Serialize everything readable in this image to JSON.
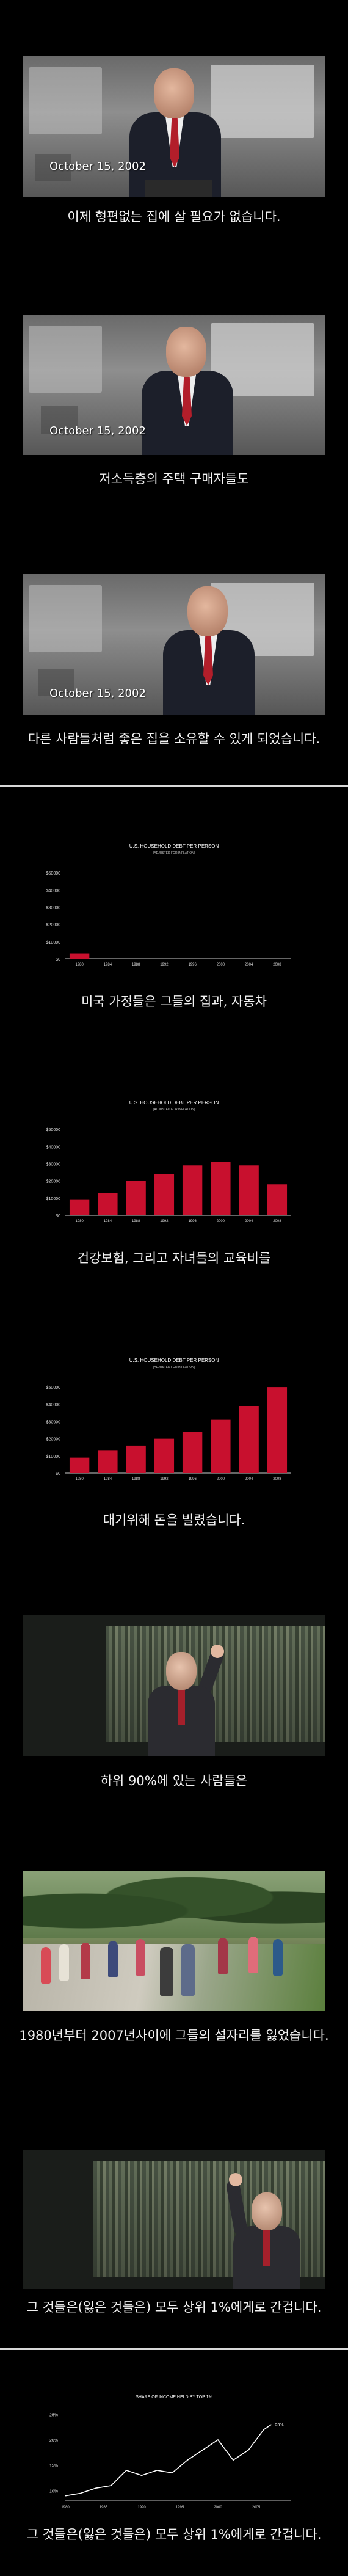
{
  "panels": [
    {
      "id": "p1",
      "caption": "이제 형편없는 집에 살 필요가 없습니다.",
      "date": "October 15, 2002"
    },
    {
      "id": "p2",
      "caption": "저소득층의 주택 구매자들도",
      "date": "October 15, 2002"
    },
    {
      "id": "p3",
      "caption": "다른 사람들처럼 좋은 집을 소유할 수 있게 되었습니다.",
      "date": "October 15, 2002"
    },
    {
      "id": "p4",
      "caption": "미국 가정들은 그들의 집과, 자동차"
    },
    {
      "id": "p5",
      "caption": "건강보험, 그리고 자녀들의 교육비를"
    },
    {
      "id": "p6",
      "caption": "대기위해 돈을 빌렸습니다."
    },
    {
      "id": "p7",
      "caption": "하위 90%에 있는 사람들은"
    },
    {
      "id": "p8",
      "caption": "1980년부터 2007년사이에 그들의 설자리를 잃었습니다."
    },
    {
      "id": "p9",
      "caption": "그 것들은(잃은 것들은) 모두 상위 1%에게로 간겁니다."
    },
    {
      "id": "p10",
      "caption": "그 것들은(잃은 것들은) 모두 상위 1%에게로 간겁니다."
    }
  ],
  "chart_data": [
    {
      "type": "bar",
      "title": "U.S. HOUSEHOLD DEBT PER PERSON",
      "subtitle": "(ADJUSTED FOR INFLATION)",
      "categories": [
        "1980",
        "1984",
        "1988",
        "1992",
        "1996",
        "2000",
        "2004",
        "2008"
      ],
      "values": [
        3000,
        0,
        0,
        0,
        0,
        0,
        0,
        0
      ],
      "yticks": [
        "$50000",
        "$40000",
        "$30000",
        "$20000",
        "$10000",
        "$0"
      ],
      "ylim": [
        0,
        55000
      ],
      "color": "#c8102e"
    },
    {
      "type": "bar",
      "title": "U.S. HOUSEHOLD DEBT PER PERSON",
      "subtitle": "(ADJUSTED FOR INFLATION)",
      "categories": [
        "1980",
        "1984",
        "1988",
        "1992",
        "1996",
        "2000",
        "2004",
        "2008"
      ],
      "values": [
        9000,
        13000,
        20000,
        24000,
        29000,
        31000,
        29000,
        18000
      ],
      "yticks": [
        "$50000",
        "$40000",
        "$30000",
        "$20000",
        "$10000",
        "$0"
      ],
      "ylim": [
        0,
        55000
      ],
      "color": "#c8102e"
    },
    {
      "type": "bar",
      "title": "U.S. HOUSEHOLD DEBT PER PERSON",
      "subtitle": "(ADJUSTED FOR INFLATION)",
      "categories": [
        "1980",
        "1984",
        "1988",
        "1992",
        "1996",
        "2000",
        "2004",
        "2008"
      ],
      "values": [
        9000,
        13000,
        16000,
        20000,
        24000,
        31000,
        39000,
        50000
      ],
      "yticks": [
        "$50000",
        "$40000",
        "$30000",
        "$20000",
        "$10000",
        "$0"
      ],
      "ylim": [
        0,
        55000
      ],
      "color": "#c8102e"
    },
    {
      "type": "line",
      "title": "SHARE OF INCOME HELD BY TOP 1%",
      "x": [
        1980,
        1982,
        1984,
        1986,
        1988,
        1990,
        1992,
        1994,
        1996,
        1998,
        2000,
        2002,
        2004,
        2006,
        2007
      ],
      "y": [
        9,
        9.5,
        10.5,
        11,
        14,
        13,
        14,
        13.5,
        16,
        18,
        20,
        16,
        18,
        22,
        23
      ],
      "xticks": [
        "1980",
        "1985",
        "1990",
        "1995",
        "2000",
        "2005"
      ],
      "yticks": [
        "25%",
        "20%",
        "15%",
        "10%"
      ],
      "ylim": [
        8,
        26
      ],
      "end_label": "23%",
      "color": "#ffffff"
    }
  ]
}
